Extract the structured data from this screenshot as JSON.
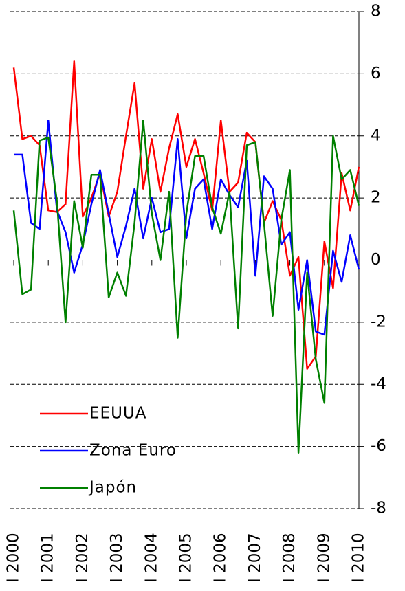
{
  "chart_data": {
    "type": "line",
    "categories": [
      "I 2000",
      null,
      null,
      null,
      "I 2001",
      null,
      null,
      null,
      "I 2002",
      null,
      null,
      null,
      "I 2003",
      null,
      null,
      null,
      "I 2004",
      null,
      null,
      null,
      "I 2005",
      null,
      null,
      null,
      "I 2006",
      null,
      null,
      null,
      "I 2007",
      null,
      null,
      null,
      "I 2008",
      null,
      null,
      null,
      "I 2009",
      null,
      null,
      null,
      "I 2010"
    ],
    "series": [
      {
        "name": "EEUUA",
        "color": "#ff0000",
        "values": [
          6.2,
          3.9,
          4.0,
          3.7,
          1.6,
          1.55,
          1.8,
          6.4,
          1.4,
          2.0,
          2.8,
          1.4,
          2.2,
          4.0,
          5.7,
          2.3,
          3.9,
          2.2,
          3.6,
          4.7,
          3.0,
          3.9,
          2.8,
          1.6,
          4.5,
          2.2,
          2.5,
          4.1,
          3.8,
          1.2,
          1.9,
          1.3,
          -0.5,
          0.1,
          -3.5,
          -3.1,
          0.6,
          -0.9,
          2.8,
          1.6,
          3.0
        ]
      },
      {
        "name": "Zona Euro",
        "color": "#0000ff",
        "values": [
          3.4,
          3.4,
          1.2,
          1.0,
          4.5,
          1.6,
          0.9,
          -0.4,
          0.5,
          1.8,
          2.9,
          1.5,
          0.1,
          1.1,
          2.3,
          0.7,
          2.0,
          0.9,
          1.0,
          3.9,
          0.7,
          2.3,
          2.6,
          1.0,
          2.6,
          2.1,
          1.7,
          3.2,
          -0.5,
          2.7,
          2.3,
          0.5,
          0.9,
          -1.6,
          0.0,
          -2.3,
          -2.4,
          0.3,
          -0.7,
          0.8,
          -0.3
        ]
      },
      {
        "name": "Japón",
        "color": "#008000",
        "values": [
          1.6,
          -1.1,
          -0.95,
          3.85,
          3.95,
          1.9,
          -2.0,
          1.9,
          0.4,
          2.75,
          2.75,
          -1.2,
          -0.4,
          -1.15,
          1.2,
          4.5,
          1.5,
          0.0,
          2.2,
          -2.5,
          1.5,
          3.35,
          3.35,
          1.7,
          0.85,
          2.2,
          -2.2,
          3.7,
          3.8,
          1.2,
          -1.8,
          1.3,
          2.9,
          -6.2,
          -0.4,
          -3.2,
          -4.6,
          4.0,
          2.6,
          2.9,
          1.75
        ]
      }
    ],
    "ylim": [
      -8,
      8
    ],
    "yticks": [
      -8,
      -6,
      -4,
      -2,
      0,
      2,
      4,
      6,
      8
    ],
    "grid": true,
    "legend": "lower left"
  }
}
